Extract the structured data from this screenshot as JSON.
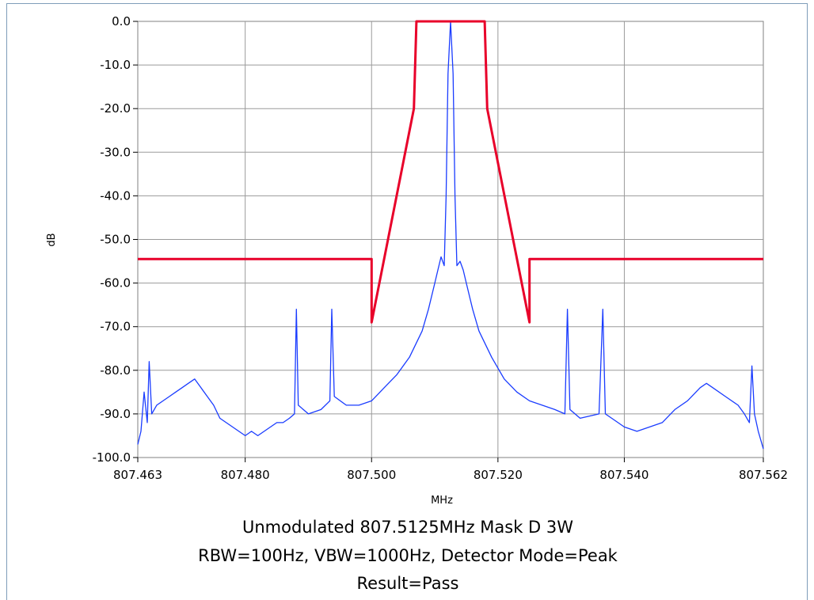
{
  "chart_data": {
    "type": "line",
    "xlabel": "MHz",
    "ylabel": "dB",
    "xlim": [
      807.463,
      807.562
    ],
    "ylim": [
      -100,
      0
    ],
    "x_ticks": [
      "807.463",
      "807.480",
      "807.500",
      "807.520",
      "807.540",
      "807.562"
    ],
    "y_ticks": [
      "0.0",
      "-10.0",
      "-20.0",
      "-30.0",
      "-40.0",
      "-50.0",
      "-60.0",
      "-70.0",
      "-80.0",
      "-90.0",
      "-100.0"
    ],
    "grid": true,
    "series": [
      {
        "color": "#e8002a",
        "points": [
          [
            807.463,
            -54.5
          ],
          [
            807.5,
            -54.5
          ],
          [
            807.5,
            -69.0
          ],
          [
            807.5067,
            -20.0
          ],
          [
            807.5071,
            0.0
          ],
          [
            807.5179,
            0.0
          ],
          [
            807.5183,
            -20.0
          ],
          [
            807.525,
            -69.0
          ],
          [
            807.525,
            -54.5
          ],
          [
            807.562,
            -54.5
          ]
        ]
      },
      {
        "color": "#1a3cff",
        "points": [
          [
            807.463,
            -97
          ],
          [
            807.4635,
            -94
          ],
          [
            807.464,
            -85
          ],
          [
            807.4645,
            -92
          ],
          [
            807.4648,
            -78
          ],
          [
            807.4652,
            -90
          ],
          [
            807.466,
            -88
          ],
          [
            807.467,
            -87
          ],
          [
            807.468,
            -86
          ],
          [
            807.469,
            -85
          ],
          [
            807.47,
            -84
          ],
          [
            807.471,
            -83
          ],
          [
            807.472,
            -82
          ],
          [
            807.473,
            -84
          ],
          [
            807.474,
            -86
          ],
          [
            807.475,
            -88
          ],
          [
            807.476,
            -91
          ],
          [
            807.477,
            -92
          ],
          [
            807.478,
            -93
          ],
          [
            807.479,
            -94
          ],
          [
            807.48,
            -95
          ],
          [
            807.481,
            -94
          ],
          [
            807.482,
            -95
          ],
          [
            807.483,
            -94
          ],
          [
            807.484,
            -93
          ],
          [
            807.485,
            -92
          ],
          [
            807.486,
            -92
          ],
          [
            807.487,
            -91
          ],
          [
            807.4878,
            -90
          ],
          [
            807.4881,
            -66
          ],
          [
            807.4884,
            -88
          ],
          [
            807.49,
            -90
          ],
          [
            807.492,
            -89
          ],
          [
            807.4934,
            -87
          ],
          [
            807.4937,
            -66
          ],
          [
            807.4941,
            -86
          ],
          [
            807.496,
            -88
          ],
          [
            807.498,
            -88
          ],
          [
            807.5,
            -87
          ],
          [
            807.502,
            -84
          ],
          [
            807.504,
            -81
          ],
          [
            807.506,
            -77
          ],
          [
            807.508,
            -71
          ],
          [
            807.509,
            -66
          ],
          [
            807.51,
            -60
          ],
          [
            807.5105,
            -57
          ],
          [
            807.511,
            -54
          ],
          [
            807.5115,
            -56
          ],
          [
            807.5118,
            -40
          ],
          [
            807.5121,
            -12
          ],
          [
            807.5125,
            0
          ],
          [
            807.5129,
            -12
          ],
          [
            807.5132,
            -40
          ],
          [
            807.5135,
            -56
          ],
          [
            807.514,
            -55
          ],
          [
            807.5145,
            -57
          ],
          [
            807.515,
            -60
          ],
          [
            807.516,
            -66
          ],
          [
            807.517,
            -71
          ],
          [
            807.519,
            -77
          ],
          [
            807.521,
            -82
          ],
          [
            807.523,
            -85
          ],
          [
            807.525,
            -87
          ],
          [
            807.527,
            -88
          ],
          [
            807.529,
            -89
          ],
          [
            807.5306,
            -90
          ],
          [
            807.531,
            -66
          ],
          [
            807.5314,
            -89
          ],
          [
            807.533,
            -91
          ],
          [
            807.536,
            -90
          ],
          [
            807.5366,
            -66
          ],
          [
            807.537,
            -90
          ],
          [
            807.539,
            -92
          ],
          [
            807.54,
            -93
          ],
          [
            807.542,
            -94
          ],
          [
            807.544,
            -93
          ],
          [
            807.546,
            -92
          ],
          [
            807.548,
            -89
          ],
          [
            807.55,
            -87
          ],
          [
            807.552,
            -84
          ],
          [
            807.553,
            -83
          ],
          [
            807.554,
            -84
          ],
          [
            807.556,
            -86
          ],
          [
            807.558,
            -88
          ],
          [
            807.559,
            -90
          ],
          [
            807.5598,
            -92
          ],
          [
            807.5602,
            -79
          ],
          [
            807.5606,
            -90
          ],
          [
            807.5612,
            -94
          ],
          [
            807.562,
            -98
          ]
        ]
      }
    ]
  },
  "caption": {
    "line1": "Unmodulated  807.5125MHz  Mask D  3W",
    "line2": "RBW=100Hz, VBW=1000Hz, Detector Mode=Peak",
    "line3": "Result=Pass"
  },
  "colors": {
    "grid": "#9a9a9a",
    "mask": "#e8002a",
    "trace": "#1a3cff"
  }
}
